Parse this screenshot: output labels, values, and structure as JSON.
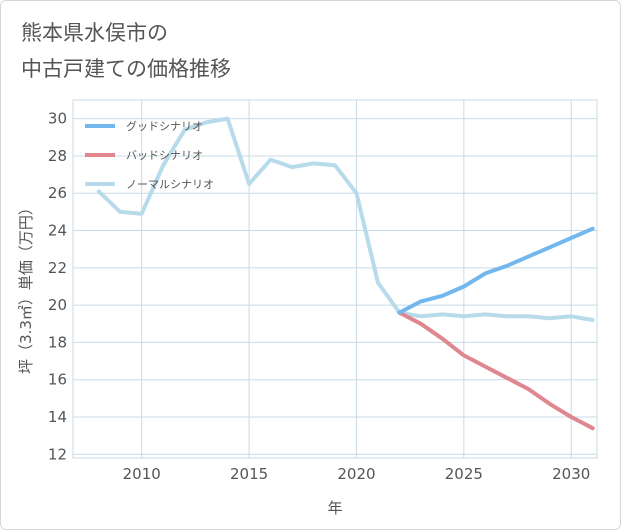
{
  "title_lines": [
    "熊本県水俣市の",
    "中古戸建ての価格推移"
  ],
  "chart_data": {
    "type": "line",
    "xlabel": "年",
    "ylabel": "坪（3.3㎡）単価（万円）",
    "xlim": [
      2006.8,
      2031.2
    ],
    "ylim": [
      11.8,
      31.0
    ],
    "x_ticks": [
      2010,
      2015,
      2020,
      2025,
      2030
    ],
    "y_ticks": [
      12,
      14,
      16,
      18,
      20,
      22,
      24,
      26,
      28,
      30
    ],
    "grid": true,
    "legend_position": "top-left",
    "series": [
      {
        "name": "グッドシナリオ",
        "color": "#72b8ef",
        "x": [
          2022,
          2023,
          2024,
          2025,
          2026,
          2027,
          2028,
          2029,
          2030,
          2031
        ],
        "y": [
          19.6,
          20.2,
          20.5,
          21.0,
          21.7,
          22.1,
          22.6,
          23.1,
          23.6,
          24.1
        ]
      },
      {
        "name": "バッドシナリオ",
        "color": "#e0868f",
        "x": [
          2022,
          2023,
          2024,
          2025,
          2026,
          2027,
          2028,
          2029,
          2030,
          2031
        ],
        "y": [
          19.6,
          19.0,
          18.2,
          17.3,
          16.7,
          16.1,
          15.5,
          14.7,
          14.0,
          13.4
        ]
      },
      {
        "name": "ノーマルシナリオ",
        "color": "#b7dbea",
        "x": [
          2008,
          2009,
          2010,
          2011,
          2012,
          2013,
          2014,
          2015,
          2016,
          2017,
          2018,
          2019,
          2020,
          2021,
          2022,
          2023,
          2024,
          2025,
          2026,
          2027,
          2028,
          2029,
          2030,
          2031
        ],
        "y": [
          26.1,
          25.0,
          24.9,
          27.5,
          29.4,
          29.8,
          30.0,
          26.5,
          27.8,
          27.4,
          27.6,
          27.5,
          26.0,
          21.2,
          19.6,
          19.4,
          19.5,
          19.4,
          19.5,
          19.4,
          19.4,
          19.3,
          19.4,
          19.2
        ]
      }
    ]
  }
}
